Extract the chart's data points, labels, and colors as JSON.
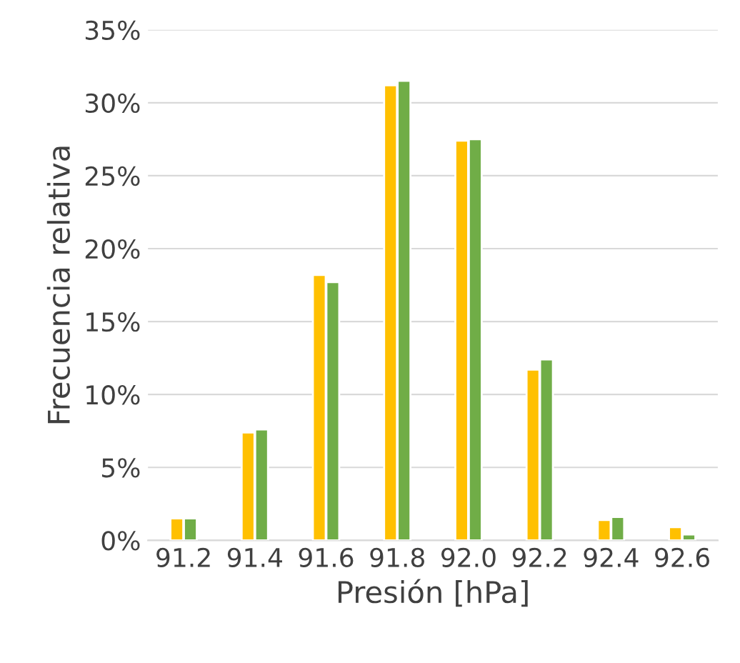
{
  "chart_data": {
    "type": "bar",
    "xlabel": "Presión [hPa]",
    "ylabel": "Frecuencia relativa",
    "categories": [
      "91.2",
      "91.4",
      "91.6",
      "91.8",
      "92.0",
      "92.2",
      "92.4",
      "92.6"
    ],
    "series": [
      {
        "color": "#ffc000",
        "values": [
          1.5,
          7.4,
          18.2,
          31.2,
          27.4,
          11.7,
          1.4,
          0.9
        ]
      },
      {
        "color": "#70ad47",
        "values": [
          1.5,
          7.6,
          17.7,
          31.5,
          27.5,
          12.4,
          1.6,
          0.4
        ]
      }
    ],
    "ylim": [
      0,
      35
    ],
    "yticks": [
      {
        "value": 0,
        "label": "0%"
      },
      {
        "value": 5,
        "label": "5%"
      },
      {
        "value": 10,
        "label": "10%"
      },
      {
        "value": 15,
        "label": "15%"
      },
      {
        "value": 20,
        "label": "20%"
      },
      {
        "value": 25,
        "label": "25%"
      },
      {
        "value": 30,
        "label": "30%"
      },
      {
        "value": 35,
        "label": "35%"
      }
    ],
    "grid": "y",
    "legend": false
  }
}
